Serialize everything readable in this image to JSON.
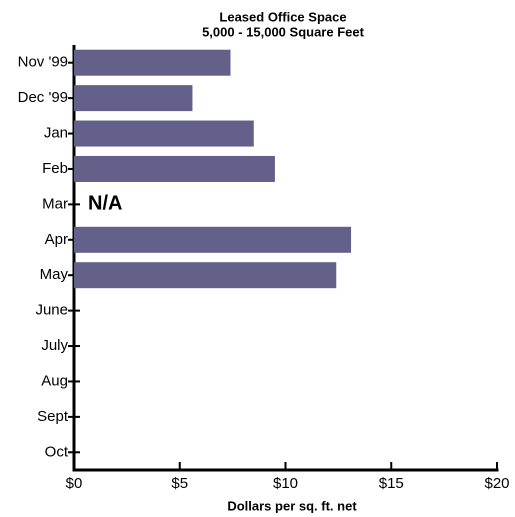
{
  "chart_data": {
    "type": "barh",
    "title": "Leased Office Space",
    "subtitle": "5,000 - 15,000 Square Feet",
    "x_label": "Dollars per sq. ft. net",
    "categories": [
      "Nov '99",
      "Dec '99",
      "Jan",
      "Feb",
      "Mar",
      "Apr",
      "May",
      "June",
      "July",
      "Aug",
      "Sept",
      "Oct"
    ],
    "values": [
      7.4,
      5.6,
      8.5,
      9.5,
      null,
      13.1,
      12.4,
      null,
      null,
      null,
      null,
      null
    ],
    "value_labels": [
      null,
      null,
      null,
      null,
      "N/A",
      null,
      null,
      null,
      null,
      null,
      null,
      null
    ],
    "color": "#636089",
    "xlim": [
      0,
      20
    ],
    "xticks": [
      {
        "value": 0,
        "label": "$0"
      },
      {
        "value": 5,
        "label": "$5"
      },
      {
        "value": 10,
        "label": "$10"
      },
      {
        "value": 15,
        "label": "$15"
      },
      {
        "value": 20,
        "label": "$20"
      }
    ]
  }
}
